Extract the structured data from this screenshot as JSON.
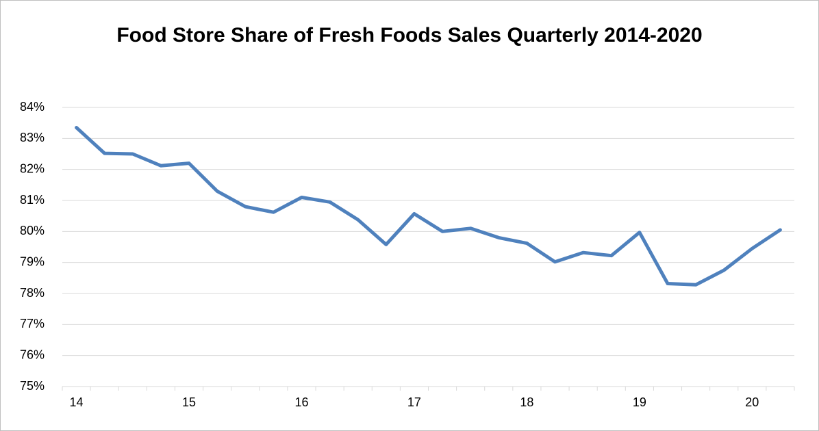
{
  "chart_data": {
    "type": "line",
    "title": "Food Store Share of Fresh Foods Sales Quarterly 2014-2020",
    "categories": [
      "14",
      null,
      null,
      null,
      "15",
      null,
      null,
      null,
      "16",
      null,
      null,
      null,
      "17",
      null,
      null,
      null,
      "18",
      null,
      null,
      null,
      "19",
      null,
      null,
      null,
      "20",
      null
    ],
    "series": [
      {
        "name": "Food store share",
        "color": "#4f81bd",
        "values": [
          83.35,
          82.52,
          82.5,
          82.12,
          82.2,
          81.3,
          80.8,
          80.62,
          81.1,
          80.95,
          80.38,
          79.58,
          80.57,
          80.0,
          80.1,
          79.8,
          79.62,
          79.02,
          79.32,
          79.22,
          79.97,
          78.32,
          78.28,
          78.75,
          79.45,
          80.05
        ]
      }
    ],
    "ylim": [
      75,
      84
    ],
    "yticks": [
      {
        "value": 75,
        "label": "75%"
      },
      {
        "value": 76,
        "label": "76%"
      },
      {
        "value": 77,
        "label": "77%"
      },
      {
        "value": 78,
        "label": "78%"
      },
      {
        "value": 79,
        "label": "79%"
      },
      {
        "value": 80,
        "label": "80%"
      },
      {
        "value": 81,
        "label": "81%"
      },
      {
        "value": 82,
        "label": "82%"
      },
      {
        "value": 83,
        "label": "83%"
      },
      {
        "value": 84,
        "label": "84%"
      }
    ],
    "grid": true
  }
}
